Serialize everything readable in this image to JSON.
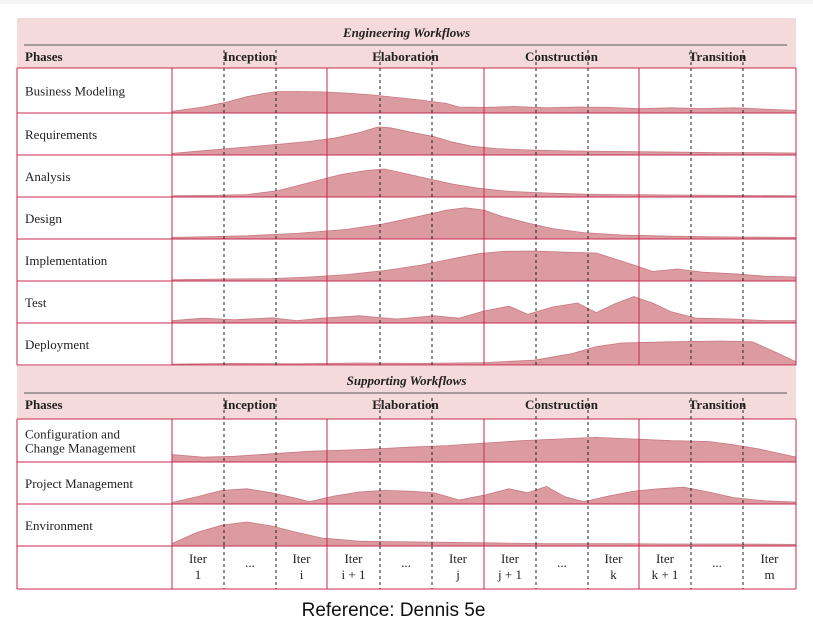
{
  "sections": [
    {
      "title": "Engineering Workflows",
      "header_label": "Phases",
      "phases": [
        "Inception",
        "Elaboration",
        "Construction",
        "Transition"
      ],
      "rows": [
        {
          "label_lines": [
            "Business Modeling"
          ],
          "profile": [
            [
              0,
              0.04
            ],
            [
              0.05,
              0.14
            ],
            [
              0.09,
              0.26
            ],
            [
              0.12,
              0.38
            ],
            [
              0.15,
              0.46
            ],
            [
              0.17,
              0.5
            ],
            [
              0.2,
              0.5
            ],
            [
              0.24,
              0.49
            ],
            [
              0.28,
              0.46
            ],
            [
              0.32,
              0.42
            ],
            [
              0.36,
              0.36
            ],
            [
              0.4,
              0.3
            ],
            [
              0.44,
              0.22
            ],
            [
              0.46,
              0.14
            ],
            [
              0.5,
              0.13
            ],
            [
              0.55,
              0.15
            ],
            [
              0.6,
              0.12
            ],
            [
              0.65,
              0.14
            ],
            [
              0.7,
              0.13
            ],
            [
              0.75,
              0.1
            ],
            [
              0.8,
              0.12
            ],
            [
              0.85,
              0.1
            ],
            [
              0.9,
              0.12
            ],
            [
              0.95,
              0.09
            ],
            [
              1,
              0.06
            ]
          ]
        },
        {
          "label_lines": [
            "Requirements"
          ],
          "profile": [
            [
              0,
              0.04
            ],
            [
              0.06,
              0.12
            ],
            [
              0.12,
              0.2
            ],
            [
              0.18,
              0.28
            ],
            [
              0.22,
              0.34
            ],
            [
              0.26,
              0.42
            ],
            [
              0.3,
              0.56
            ],
            [
              0.33,
              0.7
            ],
            [
              0.35,
              0.68
            ],
            [
              0.38,
              0.58
            ],
            [
              0.42,
              0.46
            ],
            [
              0.45,
              0.32
            ],
            [
              0.48,
              0.22
            ],
            [
              0.52,
              0.16
            ],
            [
              0.58,
              0.12
            ],
            [
              0.64,
              0.1
            ],
            [
              0.7,
              0.09
            ],
            [
              0.76,
              0.08
            ],
            [
              0.82,
              0.07
            ],
            [
              0.88,
              0.06
            ],
            [
              0.94,
              0.06
            ],
            [
              1,
              0.05
            ]
          ]
        },
        {
          "label_lines": [
            "Analysis"
          ],
          "profile": [
            [
              0,
              0.03
            ],
            [
              0.06,
              0.04
            ],
            [
              0.12,
              0.06
            ],
            [
              0.17,
              0.16
            ],
            [
              0.22,
              0.36
            ],
            [
              0.27,
              0.56
            ],
            [
              0.31,
              0.66
            ],
            [
              0.34,
              0.7
            ],
            [
              0.37,
              0.6
            ],
            [
              0.41,
              0.46
            ],
            [
              0.45,
              0.32
            ],
            [
              0.49,
              0.22
            ],
            [
              0.54,
              0.14
            ],
            [
              0.6,
              0.1
            ],
            [
              0.66,
              0.07
            ],
            [
              0.72,
              0.06
            ],
            [
              0.8,
              0.05
            ],
            [
              0.9,
              0.04
            ],
            [
              1,
              0.03
            ]
          ]
        },
        {
          "label_lines": [
            "Design"
          ],
          "profile": [
            [
              0,
              0.04
            ],
            [
              0.06,
              0.06
            ],
            [
              0.12,
              0.08
            ],
            [
              0.2,
              0.14
            ],
            [
              0.28,
              0.24
            ],
            [
              0.34,
              0.38
            ],
            [
              0.4,
              0.58
            ],
            [
              0.44,
              0.72
            ],
            [
              0.47,
              0.78
            ],
            [
              0.5,
              0.72
            ],
            [
              0.53,
              0.56
            ],
            [
              0.57,
              0.4
            ],
            [
              0.61,
              0.26
            ],
            [
              0.66,
              0.16
            ],
            [
              0.72,
              0.1
            ],
            [
              0.8,
              0.07
            ],
            [
              0.9,
              0.05
            ],
            [
              1,
              0.04
            ]
          ]
        },
        {
          "label_lines": [
            "Implementation"
          ],
          "profile": [
            [
              0,
              0.03
            ],
            [
              0.08,
              0.05
            ],
            [
              0.16,
              0.06
            ],
            [
              0.22,
              0.1
            ],
            [
              0.28,
              0.16
            ],
            [
              0.34,
              0.26
            ],
            [
              0.4,
              0.4
            ],
            [
              0.45,
              0.56
            ],
            [
              0.49,
              0.68
            ],
            [
              0.53,
              0.74
            ],
            [
              0.58,
              0.75
            ],
            [
              0.63,
              0.72
            ],
            [
              0.68,
              0.7
            ],
            [
              0.7,
              0.6
            ],
            [
              0.74,
              0.4
            ],
            [
              0.77,
              0.24
            ],
            [
              0.81,
              0.3
            ],
            [
              0.85,
              0.22
            ],
            [
              0.9,
              0.18
            ],
            [
              0.95,
              0.12
            ],
            [
              1,
              0.1
            ]
          ]
        },
        {
          "label_lines": [
            "Test"
          ],
          "profile": [
            [
              0,
              0.06
            ],
            [
              0.05,
              0.12
            ],
            [
              0.1,
              0.08
            ],
            [
              0.16,
              0.13
            ],
            [
              0.2,
              0.06
            ],
            [
              0.24,
              0.12
            ],
            [
              0.3,
              0.18
            ],
            [
              0.36,
              0.1
            ],
            [
              0.42,
              0.18
            ],
            [
              0.46,
              0.12
            ],
            [
              0.5,
              0.3
            ],
            [
              0.54,
              0.42
            ],
            [
              0.57,
              0.22
            ],
            [
              0.61,
              0.4
            ],
            [
              0.65,
              0.5
            ],
            [
              0.68,
              0.26
            ],
            [
              0.71,
              0.48
            ],
            [
              0.74,
              0.66
            ],
            [
              0.77,
              0.5
            ],
            [
              0.8,
              0.28
            ],
            [
              0.84,
              0.12
            ],
            [
              0.9,
              0.1
            ],
            [
              0.95,
              0.06
            ],
            [
              1,
              0.06
            ]
          ]
        },
        {
          "label_lines": [
            "Deployment"
          ],
          "profile": [
            [
              0,
              0.02
            ],
            [
              0.1,
              0.04
            ],
            [
              0.2,
              0.03
            ],
            [
              0.3,
              0.05
            ],
            [
              0.4,
              0.04
            ],
            [
              0.5,
              0.06
            ],
            [
              0.58,
              0.12
            ],
            [
              0.64,
              0.28
            ],
            [
              0.68,
              0.46
            ],
            [
              0.72,
              0.55
            ],
            [
              0.8,
              0.58
            ],
            [
              0.88,
              0.6
            ],
            [
              0.93,
              0.58
            ],
            [
              0.97,
              0.3
            ],
            [
              1,
              0.08
            ]
          ]
        }
      ]
    },
    {
      "title": "Supporting Workflows",
      "header_label": "Phases",
      "phases": [
        "Inception",
        "Elaboration",
        "Construction",
        "Transition"
      ],
      "rows": [
        {
          "label_lines": [
            "Configuration and",
            "Change Management"
          ],
          "profile": [
            [
              0,
              0.18
            ],
            [
              0.05,
              0.12
            ],
            [
              0.1,
              0.14
            ],
            [
              0.16,
              0.2
            ],
            [
              0.22,
              0.26
            ],
            [
              0.3,
              0.3
            ],
            [
              0.38,
              0.36
            ],
            [
              0.44,
              0.4
            ],
            [
              0.5,
              0.46
            ],
            [
              0.56,
              0.52
            ],
            [
              0.62,
              0.56
            ],
            [
              0.68,
              0.6
            ],
            [
              0.74,
              0.56
            ],
            [
              0.8,
              0.52
            ],
            [
              0.86,
              0.5
            ],
            [
              0.9,
              0.42
            ],
            [
              0.94,
              0.32
            ],
            [
              1,
              0.12
            ]
          ]
        },
        {
          "label_lines": [
            "Project Management"
          ],
          "profile": [
            [
              0,
              0.04
            ],
            [
              0.04,
              0.18
            ],
            [
              0.08,
              0.34
            ],
            [
              0.12,
              0.38
            ],
            [
              0.16,
              0.28
            ],
            [
              0.2,
              0.14
            ],
            [
              0.22,
              0.06
            ],
            [
              0.26,
              0.2
            ],
            [
              0.3,
              0.3
            ],
            [
              0.34,
              0.34
            ],
            [
              0.38,
              0.32
            ],
            [
              0.42,
              0.28
            ],
            [
              0.46,
              0.1
            ],
            [
              0.5,
              0.22
            ],
            [
              0.54,
              0.38
            ],
            [
              0.57,
              0.28
            ],
            [
              0.6,
              0.44
            ],
            [
              0.63,
              0.18
            ],
            [
              0.66,
              0.06
            ],
            [
              0.7,
              0.2
            ],
            [
              0.74,
              0.32
            ],
            [
              0.78,
              0.38
            ],
            [
              0.82,
              0.42
            ],
            [
              0.86,
              0.3
            ],
            [
              0.9,
              0.16
            ],
            [
              0.95,
              0.08
            ],
            [
              1,
              0.05
            ]
          ]
        },
        {
          "label_lines": [
            "Environment"
          ],
          "profile": [
            [
              0,
              0.06
            ],
            [
              0.04,
              0.34
            ],
            [
              0.08,
              0.52
            ],
            [
              0.12,
              0.6
            ],
            [
              0.16,
              0.5
            ],
            [
              0.2,
              0.34
            ],
            [
              0.24,
              0.2
            ],
            [
              0.3,
              0.12
            ],
            [
              0.4,
              0.1
            ],
            [
              0.5,
              0.08
            ],
            [
              0.6,
              0.06
            ],
            [
              0.7,
              0.06
            ],
            [
              0.8,
              0.05
            ],
            [
              0.9,
              0.05
            ],
            [
              1,
              0.04
            ]
          ]
        }
      ]
    }
  ],
  "iterations": [
    {
      "top": "Iter",
      "bottom": "1"
    },
    {
      "top": "...",
      "bottom": ""
    },
    {
      "top": "Iter",
      "bottom": "i"
    },
    {
      "top": "Iter",
      "bottom": "i + 1"
    },
    {
      "top": "...",
      "bottom": ""
    },
    {
      "top": "Iter",
      "bottom": "j"
    },
    {
      "top": "Iter",
      "bottom": "j + 1"
    },
    {
      "top": "...",
      "bottom": ""
    },
    {
      "top": "Iter",
      "bottom": "k"
    },
    {
      "top": "Iter",
      "bottom": "k + 1"
    },
    {
      "top": "...",
      "bottom": ""
    },
    {
      "top": "Iter",
      "bottom": "m"
    }
  ],
  "caption": "Reference: Dennis 5e",
  "colors": {
    "header_bg": "#f4dada",
    "area_fill": "#dc9ba0",
    "area_stroke": "#c87a82",
    "grid": "#c9294e",
    "text": "#222222"
  }
}
